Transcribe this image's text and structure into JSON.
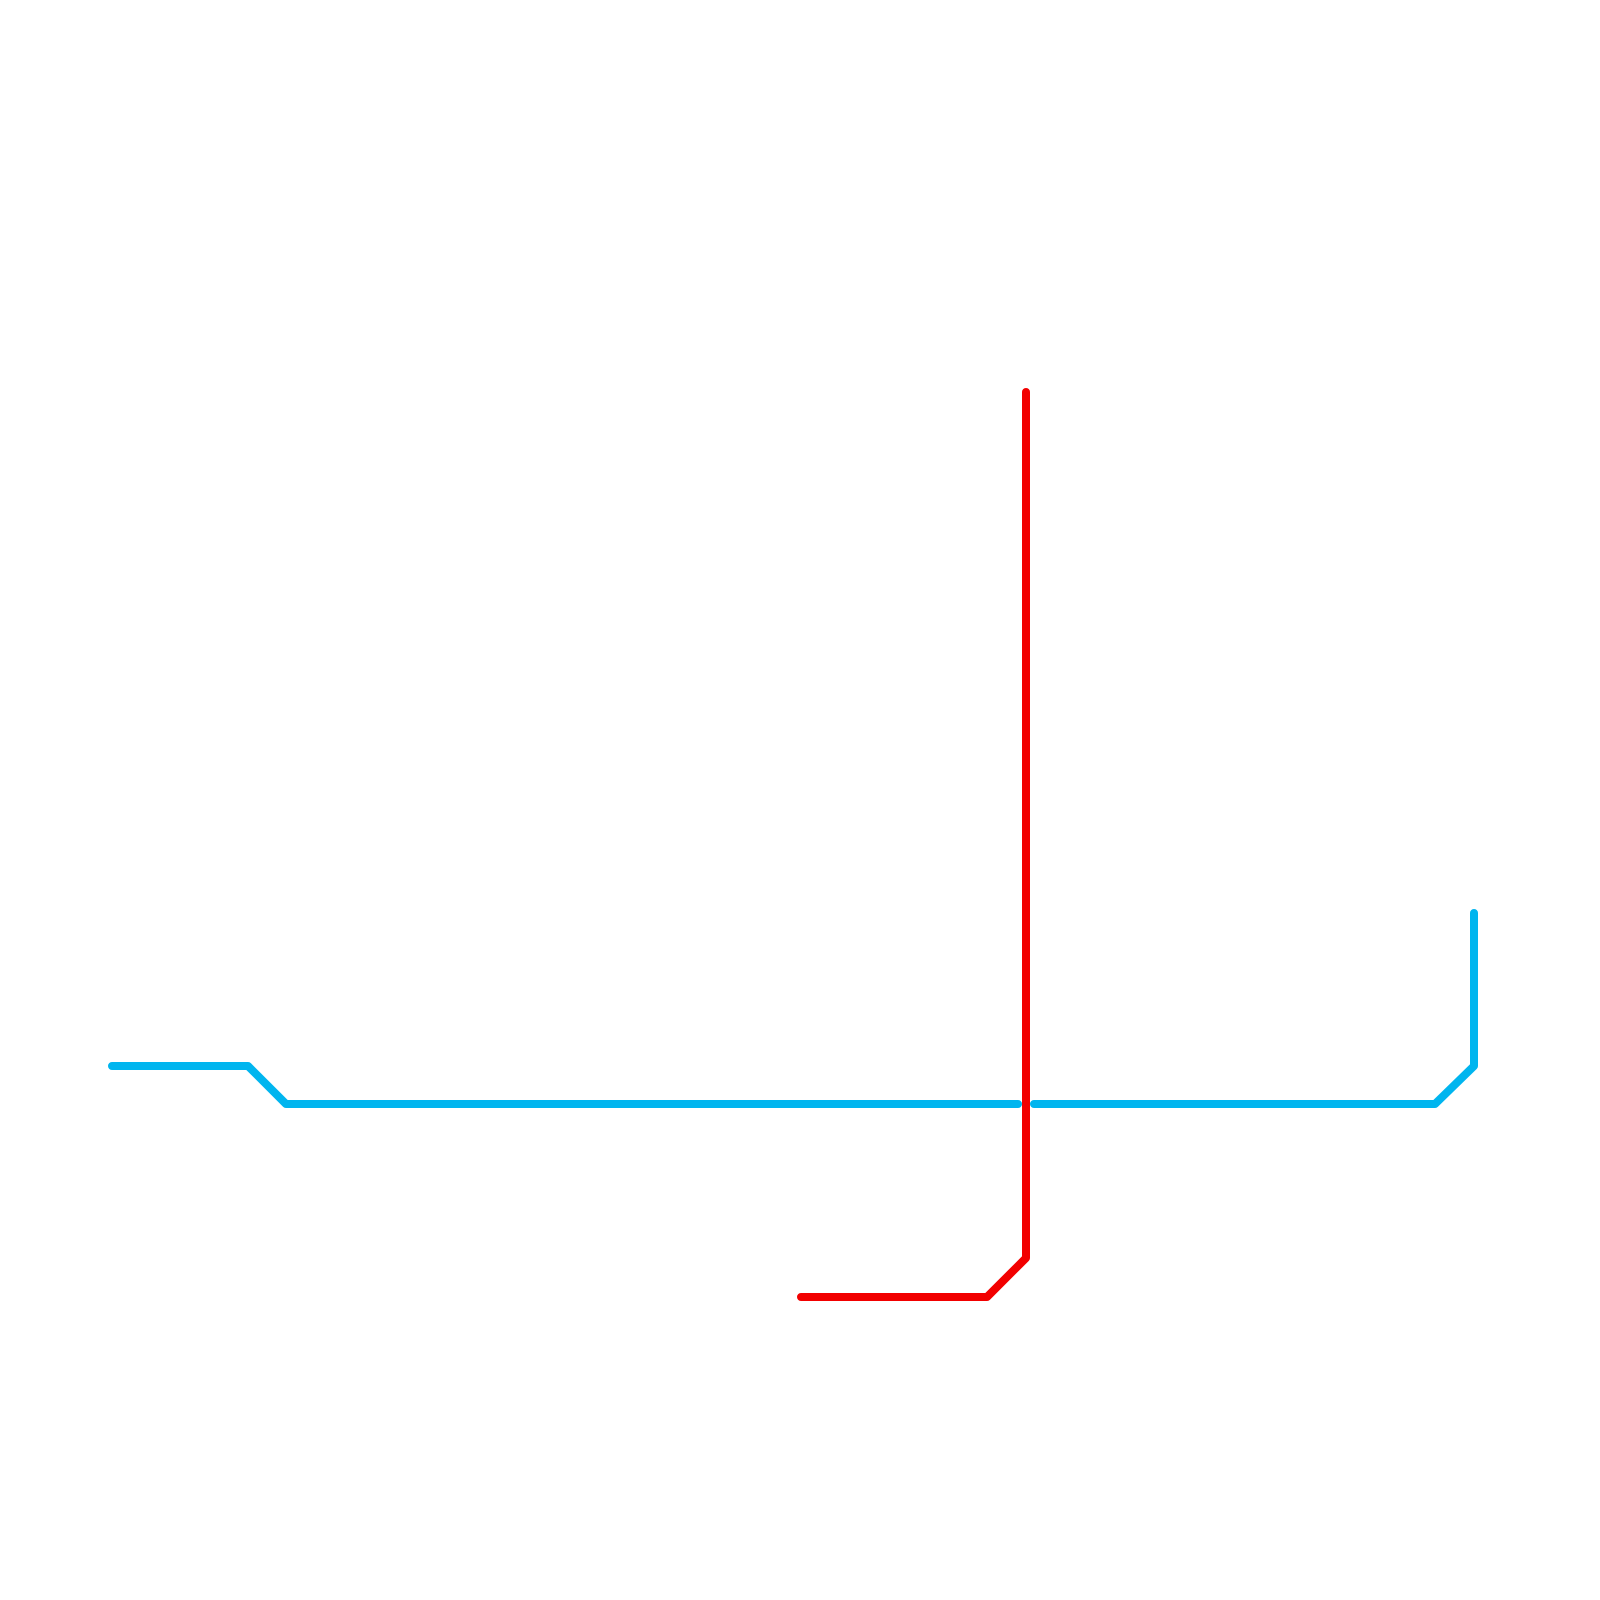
{
  "map": {
    "background": "#ffffff",
    "lines": [
      {
        "id": "blue-line",
        "color": "#00b5ef"
      },
      {
        "id": "red-line",
        "color": "#f20000"
      }
    ]
  }
}
